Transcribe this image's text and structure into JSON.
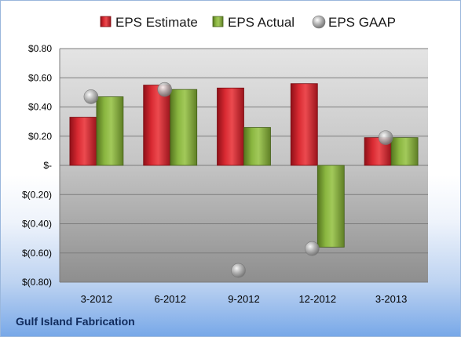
{
  "chart_data": {
    "type": "bar",
    "categories": [
      "3-2012",
      "6-2012",
      "9-2012",
      "12-2012",
      "3-2013"
    ],
    "series": [
      {
        "name": "EPS Estimate",
        "type": "bar",
        "values": [
          0.33,
          0.55,
          0.53,
          0.56,
          0.19
        ]
      },
      {
        "name": "EPS Actual",
        "type": "bar",
        "values": [
          0.47,
          0.52,
          0.26,
          -0.56,
          0.19
        ]
      },
      {
        "name": "EPS GAAP",
        "type": "scatter",
        "values": [
          0.47,
          0.52,
          -0.72,
          -0.57,
          0.19
        ]
      }
    ],
    "yticks": [
      0.8,
      0.6,
      0.4,
      0.2,
      0,
      -0.2,
      -0.4,
      -0.6,
      -0.8
    ],
    "ytick_labels": [
      "$0.80",
      "$0.60",
      "$0.40",
      "$0.20",
      "$-",
      "$(0.20)",
      "$(0.40)",
      "$(0.60)",
      "$(0.80)"
    ],
    "ylim": [
      -0.8,
      0.8
    ],
    "grid": true,
    "legend_position": "top",
    "colors": {
      "estimate": "#c0202a",
      "actual": "#7fa83a",
      "gaap": "#a8a8a8"
    }
  },
  "footer": {
    "company": "Gulf Island Fabrication"
  }
}
